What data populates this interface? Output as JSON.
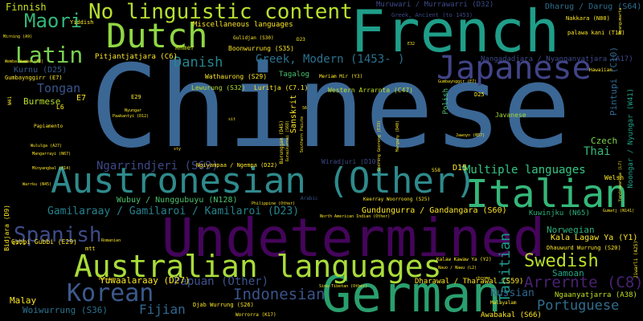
{
  "words": [
    {
      "text": "Chinese",
      "color": "#3b6795"
    },
    {
      "text": "French",
      "color": "#1f9e89"
    },
    {
      "text": "Undetermined",
      "color": "#44055a"
    },
    {
      "text": "German",
      "color": "#2a9f6e"
    },
    {
      "text": "Austronesian (Other)",
      "color": "#2f8a8c"
    },
    {
      "text": "Dutch",
      "color": "#8fd744"
    },
    {
      "text": "Italian",
      "color": "#35b779"
    },
    {
      "text": "Japanese",
      "color": "#414487"
    },
    {
      "text": "Australian languages",
      "color": "#a9dc3a"
    },
    {
      "text": "No linguistic content",
      "color": "#b6df30"
    },
    {
      "text": "Latin",
      "color": "#7ad151"
    },
    {
      "text": "Korean",
      "color": "#3b5a8c"
    },
    {
      "text": "Spanish",
      "color": "#3f4b89"
    },
    {
      "text": "Maori",
      "color": "#34b679"
    },
    {
      "text": "Swedish",
      "color": "#bade28"
    },
    {
      "text": "Arrernte (C8)",
      "color": "#482273"
    },
    {
      "text": "Portuguese",
      "color": "#2f6d8e"
    },
    {
      "text": "Indonesian",
      "color": "#3a548c"
    },
    {
      "text": "Danish",
      "color": "#25858e"
    },
    {
      "text": "Finnish",
      "color": "#c7e020"
    },
    {
      "text": "Fijian",
      "color": "#31678e"
    },
    {
      "text": "Tongan",
      "color": "#3a548c"
    },
    {
      "text": "Multiple languages",
      "color": "#31b57b"
    },
    {
      "text": "Tahitian",
      "color": "#1f978b"
    },
    {
      "text": "Greek, Modern (1453- )",
      "color": "#2c718e"
    },
    {
      "text": "Ngarrindjeri (S69)",
      "color": "#3f4889"
    },
    {
      "text": "Gamilaraay / Gamilaroi / Kamilaroi (D23)",
      "color": "#25838e"
    },
    {
      "text": "Papuan (Other)",
      "color": "#3b528b"
    },
    {
      "text": "Yuwaalaraay (D27)",
      "color": "#fde725"
    },
    {
      "text": "Russian",
      "color": "#31678e"
    },
    {
      "text": "Samoan",
      "color": "#21a685"
    },
    {
      "text": "Malay",
      "color": "#fde725"
    },
    {
      "text": "Woiwurrung (S36)",
      "color": "#2c728e"
    },
    {
      "text": "Burmese",
      "color": "#b5de2b"
    },
    {
      "text": "Kurnu (D25)",
      "color": "#38588c"
    },
    {
      "text": "Thai",
      "color": "#37b878"
    },
    {
      "text": "Czech",
      "color": "#7fd34e"
    },
    {
      "text": "Norwegian",
      "color": "#2db27d"
    },
    {
      "text": "Kala Lagaw Ya (Y1)",
      "color": "#fde725"
    },
    {
      "text": "Gundungurra / Gandangara (S60)",
      "color": "#fde725"
    },
    {
      "text": "Wubuy / Nunggubuyu (N128)",
      "color": "#4ac16d"
    },
    {
      "text": "Miscellaneous languages",
      "color": "#fde725"
    },
    {
      "text": "Pitjantjatjara (C6)",
      "color": "#fde725"
    },
    {
      "text": "Nangadadjara / Nyanganyatjara (A17)",
      "color": "#3e4989"
    },
    {
      "text": "Dharug / Darug (S64)",
      "color": "#2e6f8e"
    },
    {
      "text": "Muruwari / Murrawarri (D32)",
      "color": "#3e4a89"
    },
    {
      "text": "Awabakal (S66)",
      "color": "#fde725"
    },
    {
      "text": "Kuwinjku (N65)",
      "color": "#2db27d"
    },
    {
      "text": "Dharawal / Tharawal (S59)",
      "color": "#fde725"
    },
    {
      "text": "Ngaanyatjarra (A38)",
      "color": "#c2df23"
    },
    {
      "text": "Wathaurong (S29)",
      "color": "#fde725"
    },
    {
      "text": "Tagalog",
      "color": "#4ac16d"
    },
    {
      "text": "Lewurung (S32)",
      "color": "#b8de29"
    },
    {
      "text": "Luritja (C7.1)",
      "color": "#fde725"
    },
    {
      "text": "Western Arrarnta (C47)",
      "color": "#c2df23"
    },
    {
      "text": "Boonwurrung (S35)",
      "color": "#fde725"
    },
    {
      "text": "Sanskrit",
      "color": "#fde725"
    },
    {
      "text": "Pintupi (C10)",
      "color": "#31688e"
    },
    {
      "text": "Noongar / Nyungar (W41)",
      "color": "#1fa088"
    },
    {
      "text": "Multiple languages",
      "color": "#31b57b"
    },
    {
      "text": "Gubbi Gubbi (E29)",
      "color": "#fde725"
    },
    {
      "text": "Djab Wurrung (S26)",
      "color": "#fde725"
    },
    {
      "text": "Wiradjuri (D10)",
      "color": "#3e4a89"
    },
    {
      "text": "Ngiyampaa / Ngempa (D22)",
      "color": "#fde725"
    },
    {
      "text": "Javanese",
      "color": "#a2da37"
    },
    {
      "text": "Welsh",
      "color": "#fde725"
    },
    {
      "text": "Khmer",
      "color": "#c8e020"
    },
    {
      "text": "Maithili",
      "color": "#fde725"
    },
    {
      "text": "Gumbaynggirr (E7)",
      "color": "#fde725"
    },
    {
      "text": "Bidjara (D9)",
      "color": "#fde725"
    },
    {
      "text": "Yiddish",
      "color": "#fde725"
    },
    {
      "text": "Greek, Ancient (to 1453)",
      "color": "#3e4a89"
    },
    {
      "text": "Nakkara (N80)",
      "color": "#fde725"
    },
    {
      "text": "palawa kani (T16)",
      "color": "#fde725"
    },
    {
      "text": "Wemba Wemba (S2)",
      "color": "#fde725"
    },
    {
      "text": "Hawaiian",
      "color": "#fde725"
    },
    {
      "text": "Polish",
      "color": "#4ac16d"
    },
    {
      "text": "Dhauwurd Wurrung (S20)",
      "color": "#fde725"
    },
    {
      "text": "Jawoyn (N57)",
      "color": "#fde725"
    },
    {
      "text": "Warrku (N45)",
      "color": "#fde725"
    },
    {
      "text": "Gumatj (N141)",
      "color": "#fde725"
    },
    {
      "text": "Jiwarli (A25)",
      "color": "#fde725"
    },
    {
      "text": "Jaminjung (K6)",
      "color": "#fde725"
    },
    {
      "text": "Guugu Yimidhirr (Y57)",
      "color": "#fde725"
    },
    {
      "text": "Kalaw Kawaw Ya (Y2)",
      "color": "#fde725"
    },
    {
      "text": "Nauo / Nawu (L2)",
      "color": "#fde725"
    },
    {
      "text": "Malayalam",
      "color": "#fde725"
    },
    {
      "text": "Southern Paiute",
      "color": "#fde725"
    },
    {
      "text": "Worrorra (K17)",
      "color": "#fde725"
    },
    {
      "text": "Keerray Woorroong (S25)",
      "color": "#fde725"
    },
    {
      "text": "Philippine (Other)",
      "color": "#fde725"
    },
    {
      "text": "Arabic",
      "color": "#3a548c"
    },
    {
      "text": "Persian",
      "color": "#fde725"
    },
    {
      "text": "Romanian",
      "color": "#fde725"
    },
    {
      "text": "Papiamento",
      "color": "#fde725"
    },
    {
      "text": "Wargamay (Y129)",
      "color": "#fde725"
    },
    {
      "text": "mtt",
      "color": "#fde725"
    },
    {
      "text": "Yindjibarndi (A51)",
      "color": "#fde725"
    },
    {
      "text": "Birdungu (A40)",
      "color": "#fde725"
    },
    {
      "text": "Ngarigo / Ngarigu (S60)",
      "color": "#fde725"
    },
    {
      "text": "Wululga (A27)",
      "color": "#fde725"
    },
    {
      "text": "Mangarrayi (N67)",
      "color": "#fde725"
    },
    {
      "text": "Gumbaynggir (E7)",
      "color": "#fde725"
    },
    {
      "text": "Bundjalung (E12)",
      "color": "#fde725"
    },
    {
      "text": "Wajarri (A39)",
      "color": "#fde725"
    },
    {
      "text": "Eastern Arrernte",
      "color": "#fde725"
    },
    {
      "text": "Yugambeh (E17)",
      "color": "#fde725"
    },
    {
      "text": "Gunaikurnai (S68)",
      "color": "#fde725"
    },
    {
      "text": "North American Indian (Other)",
      "color": "#fde725"
    },
    {
      "text": "Sino-Tibetan (Other)",
      "color": "#fde725"
    },
    {
      "text": "Barunggam (D45)",
      "color": "#fde725"
    },
    {
      "text": "Gooniyandi (K2)",
      "color": "#fde725"
    },
    {
      "text": "Yandruwandha (L7)",
      "color": "#fde725"
    },
    {
      "text": "Minyangbal (E14)",
      "color": "#fde725"
    },
    {
      "text": "Gooreng Gooreng (E33)",
      "color": "#fde725"
    },
    {
      "text": "Woiwurrung (S35)",
      "color": "#fde725"
    },
    {
      "text": "Meriam Mir (Y3)",
      "color": "#fde725"
    },
    {
      "text": "Gulidjan (S30)",
      "color": "#fde725"
    },
    {
      "text": "Warnman (A45)",
      "color": "#fde725"
    },
    {
      "text": "Margany (D40)",
      "color": "#fde725"
    },
    {
      "text": "Yingkarta (A26)",
      "color": "#fde725"
    },
    {
      "text": "Yolngu Matha",
      "color": "#fde725"
    },
    {
      "text": "Nyangumarta",
      "color": "#fde725"
    },
    {
      "text": "Gugu Badhun (Y80)",
      "color": "#fde725"
    },
    {
      "text": "Greenlandic",
      "color": "#fde725"
    },
    {
      "text": "Bandjalang",
      "color": "#fde725"
    },
    {
      "text": "Creoles and Pidgins, French-based (Other)",
      "color": "#fde725"
    },
    {
      "text": "Mirning (A9)",
      "color": "#fde725"
    },
    {
      "text": "Nyungar",
      "color": "#fde725"
    },
    {
      "text": "Wangaaybuwan (D22.1)",
      "color": "#fde725"
    },
    {
      "text": "Paakantyi (D12)",
      "color": "#fde725"
    },
    {
      "text": "Ngunawal (S7)",
      "color": "#fde725"
    },
    {
      "text": "Jaru (K12)",
      "color": "#fde725"
    },
    {
      "text": "W41",
      "color": "#fde725"
    },
    {
      "text": "D23",
      "color": "#fde725"
    },
    {
      "text": "E29",
      "color": "#fde725"
    },
    {
      "text": "C7.1",
      "color": "#fde725"
    },
    {
      "text": "L6",
      "color": "#fde725"
    },
    {
      "text": "D25",
      "color": "#fde725"
    },
    {
      "text": "gri",
      "color": "#fde725"
    },
    {
      "text": "lis",
      "color": "#fde725"
    },
    {
      "text": "E7",
      "color": "#fde725"
    },
    {
      "text": "D15",
      "color": "#fde725"
    },
    {
      "text": "S58",
      "color": "#fde725"
    },
    {
      "text": "sty",
      "color": "#fde725"
    },
    {
      "text": "sit",
      "color": "#fde725"
    },
    {
      "text": "E32",
      "color": "#fde725"
    },
    {
      "text": "S6",
      "color": "#fde725"
    },
    {
      "text": "chrome",
      "color": "#fde725"
    }
  ]
}
